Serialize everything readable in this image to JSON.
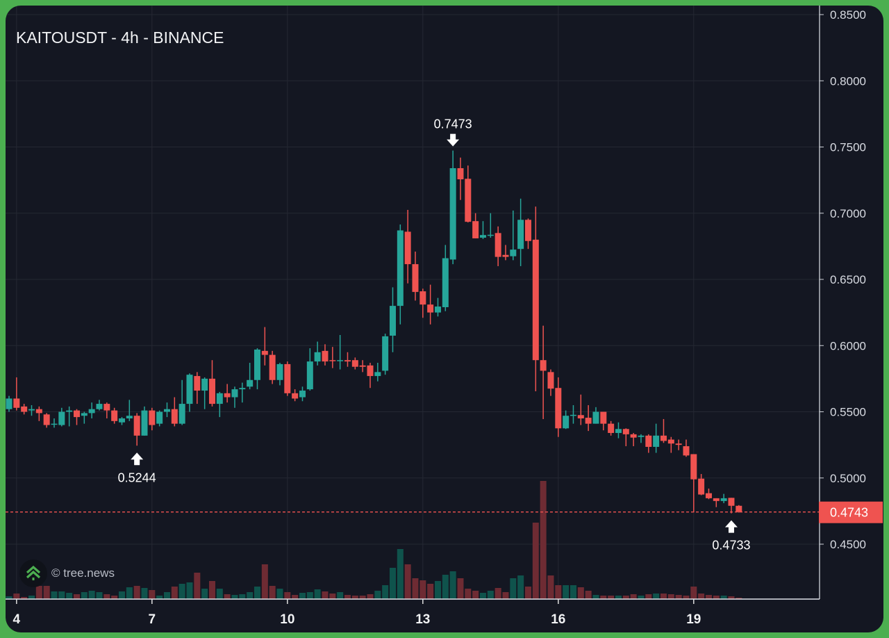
{
  "header": {
    "title": "KAITOUSDT - 4h - BINANCE"
  },
  "watermark": {
    "text": "© tree.news"
  },
  "last_price": {
    "label": "0.4743",
    "value": 0.4743
  },
  "colors": {
    "up": "#26a69a",
    "down": "#ef5350",
    "up_volume": "#0f534c",
    "down_volume": "#6e2b33",
    "background": "#141722",
    "grid": "#252833",
    "frame": "#4caf50"
  },
  "chart_data": {
    "type": "candlestick",
    "title": "KAITOUSDT - 4h - BINANCE",
    "interval": "4h",
    "ylim": [
      0.405,
      0.85
    ],
    "y_ticks": [
      "0.8500",
      "0.8000",
      "0.7500",
      "0.7000",
      "0.6500",
      "0.6000",
      "0.5500",
      "0.5000",
      "0.4500"
    ],
    "x_ticks": [
      {
        "label": "4",
        "index": 1
      },
      {
        "label": "7",
        "index": 19
      },
      {
        "label": "10",
        "index": 37
      },
      {
        "label": "13",
        "index": 55
      },
      {
        "label": "16",
        "index": 73
      },
      {
        "label": "19",
        "index": 91
      }
    ],
    "annotations": [
      {
        "label": "0.7473",
        "index": 59,
        "price": 0.7473,
        "position": "above"
      },
      {
        "label": "0.5244",
        "index": 17,
        "price": 0.5244,
        "position": "below"
      },
      {
        "label": "0.4733",
        "index": 96,
        "price": 0.4733,
        "position": "below"
      }
    ],
    "ohlc": [
      [
        0.552,
        0.562,
        0.55,
        0.56
      ],
      [
        0.56,
        0.576,
        0.551,
        0.553
      ],
      [
        0.554,
        0.556,
        0.548,
        0.55
      ],
      [
        0.551,
        0.555,
        0.547,
        0.552
      ],
      [
        0.552,
        0.554,
        0.543,
        0.549
      ],
      [
        0.548,
        0.549,
        0.538,
        0.54
      ],
      [
        0.541,
        0.545,
        0.538,
        0.541
      ],
      [
        0.54,
        0.553,
        0.539,
        0.55
      ],
      [
        0.55,
        0.554,
        0.539,
        0.551
      ],
      [
        0.551,
        0.552,
        0.54,
        0.546
      ],
      [
        0.547,
        0.55,
        0.541,
        0.549
      ],
      [
        0.549,
        0.557,
        0.545,
        0.552
      ],
      [
        0.552,
        0.559,
        0.551,
        0.556
      ],
      [
        0.556,
        0.557,
        0.545,
        0.551
      ],
      [
        0.551,
        0.553,
        0.541,
        0.543
      ],
      [
        0.542,
        0.546,
        0.54,
        0.545
      ],
      [
        0.545,
        0.559,
        0.543,
        0.547
      ],
      [
        0.547,
        0.549,
        0.5244,
        0.532
      ],
      [
        0.532,
        0.554,
        0.532,
        0.551
      ],
      [
        0.551,
        0.553,
        0.536,
        0.54
      ],
      [
        0.541,
        0.551,
        0.539,
        0.55
      ],
      [
        0.55,
        0.557,
        0.546,
        0.552
      ],
      [
        0.552,
        0.561,
        0.539,
        0.541
      ],
      [
        0.541,
        0.574,
        0.54,
        0.556
      ],
      [
        0.556,
        0.579,
        0.55,
        0.578
      ],
      [
        0.577,
        0.58,
        0.556,
        0.566
      ],
      [
        0.566,
        0.576,
        0.552,
        0.575
      ],
      [
        0.575,
        0.589,
        0.554,
        0.556
      ],
      [
        0.556,
        0.565,
        0.546,
        0.564
      ],
      [
        0.564,
        0.571,
        0.557,
        0.561
      ],
      [
        0.561,
        0.569,
        0.553,
        0.567
      ],
      [
        0.567,
        0.572,
        0.557,
        0.568
      ],
      [
        0.569,
        0.587,
        0.567,
        0.574
      ],
      [
        0.574,
        0.598,
        0.567,
        0.597
      ],
      [
        0.596,
        0.614,
        0.585,
        0.593
      ],
      [
        0.593,
        0.596,
        0.571,
        0.574
      ],
      [
        0.574,
        0.587,
        0.57,
        0.586
      ],
      [
        0.586,
        0.588,
        0.562,
        0.564
      ],
      [
        0.564,
        0.567,
        0.558,
        0.56
      ],
      [
        0.561,
        0.569,
        0.558,
        0.566
      ],
      [
        0.567,
        0.598,
        0.566,
        0.588
      ],
      [
        0.588,
        0.603,
        0.585,
        0.595
      ],
      [
        0.596,
        0.601,
        0.585,
        0.588
      ],
      [
        0.589,
        0.599,
        0.583,
        0.5885
      ],
      [
        0.589,
        0.608,
        0.582,
        0.589
      ],
      [
        0.589,
        0.595,
        0.584,
        0.588
      ],
      [
        0.589,
        0.591,
        0.582,
        0.584
      ],
      [
        0.585,
        0.589,
        0.58,
        0.584
      ],
      [
        0.585,
        0.587,
        0.568,
        0.577
      ],
      [
        0.577,
        0.587,
        0.573,
        0.58
      ],
      [
        0.581,
        0.609,
        0.578,
        0.607
      ],
      [
        0.6075,
        0.644,
        0.595,
        0.63
      ],
      [
        0.63,
        0.6915,
        0.616,
        0.687
      ],
      [
        0.686,
        0.7025,
        0.647,
        0.6615
      ],
      [
        0.6615,
        0.671,
        0.634,
        0.6405
      ],
      [
        0.641,
        0.643,
        0.621,
        0.631
      ],
      [
        0.631,
        0.646,
        0.616,
        0.625
      ],
      [
        0.625,
        0.636,
        0.622,
        0.6295
      ],
      [
        0.629,
        0.676,
        0.626,
        0.666
      ],
      [
        0.665,
        0.7473,
        0.6615,
        0.734
      ],
      [
        0.734,
        0.742,
        0.71,
        0.7256
      ],
      [
        0.726,
        0.736,
        0.693,
        0.6935
      ],
      [
        0.694,
        0.7,
        0.681,
        0.681
      ],
      [
        0.6815,
        0.694,
        0.6805,
        0.6835
      ],
      [
        0.6833,
        0.7,
        0.6815,
        0.6837
      ],
      [
        0.685,
        0.69,
        0.66,
        0.667
      ],
      [
        0.6685,
        0.676,
        0.6645,
        0.667
      ],
      [
        0.6675,
        0.702,
        0.6645,
        0.6725
      ],
      [
        0.673,
        0.711,
        0.66,
        0.695
      ],
      [
        0.695,
        0.696,
        0.673,
        0.679
      ],
      [
        0.68,
        0.705,
        0.5655,
        0.589
      ],
      [
        0.589,
        0.615,
        0.5445,
        0.581
      ],
      [
        0.58,
        0.582,
        0.562,
        0.5675
      ],
      [
        0.568,
        0.576,
        0.531,
        0.5375
      ],
      [
        0.5375,
        0.551,
        0.537,
        0.547
      ],
      [
        0.5473,
        0.555,
        0.541,
        0.5477
      ],
      [
        0.5475,
        0.563,
        0.54,
        0.545
      ],
      [
        0.5455,
        0.555,
        0.5355,
        0.541
      ],
      [
        0.541,
        0.5535,
        0.541,
        0.55
      ],
      [
        0.55,
        0.55,
        0.536,
        0.541
      ],
      [
        0.541,
        0.543,
        0.532,
        0.534
      ],
      [
        0.534,
        0.542,
        0.53,
        0.537
      ],
      [
        0.537,
        0.5375,
        0.524,
        0.533
      ],
      [
        0.533,
        0.534,
        0.524,
        0.5305
      ],
      [
        0.531,
        0.533,
        0.5265,
        0.532
      ],
      [
        0.532,
        0.533,
        0.519,
        0.5235
      ],
      [
        0.5235,
        0.541,
        0.519,
        0.532
      ],
      [
        0.532,
        0.5445,
        0.5265,
        0.528
      ],
      [
        0.529,
        0.531,
        0.519,
        0.526
      ],
      [
        0.526,
        0.529,
        0.521,
        0.525
      ],
      [
        0.524,
        0.529,
        0.516,
        0.517
      ],
      [
        0.518,
        0.518,
        0.474,
        0.499
      ],
      [
        0.4995,
        0.503,
        0.487,
        0.4875
      ],
      [
        0.4885,
        0.492,
        0.484,
        0.4847
      ],
      [
        0.4847,
        0.4847,
        0.478,
        0.4826
      ],
      [
        0.4826,
        0.488,
        0.481,
        0.4847
      ],
      [
        0.485,
        0.485,
        0.4733,
        0.479
      ],
      [
        0.479,
        0.4795,
        0.4738,
        0.4743
      ]
    ],
    "volume_relative": [
      4,
      8,
      3,
      5,
      19,
      19,
      11,
      11,
      9,
      7,
      10,
      12,
      10,
      7,
      5,
      11,
      17,
      19,
      16,
      13,
      5,
      10,
      18,
      22,
      24,
      38,
      15,
      26,
      15,
      7,
      6,
      7,
      10,
      18,
      50,
      19,
      15,
      10,
      6,
      9,
      10,
      14,
      11,
      8,
      10,
      6,
      5,
      5,
      7,
      12,
      20,
      45,
      72,
      50,
      30,
      27,
      22,
      26,
      35,
      40,
      30,
      15,
      12,
      9,
      12,
      16,
      10,
      30,
      34,
      18,
      110,
      170,
      34,
      20,
      20,
      20,
      17,
      12,
      6,
      5,
      5,
      5,
      5,
      7,
      5,
      7,
      8,
      8,
      7,
      6,
      5,
      18,
      8,
      6,
      5,
      5,
      4,
      2
    ]
  }
}
